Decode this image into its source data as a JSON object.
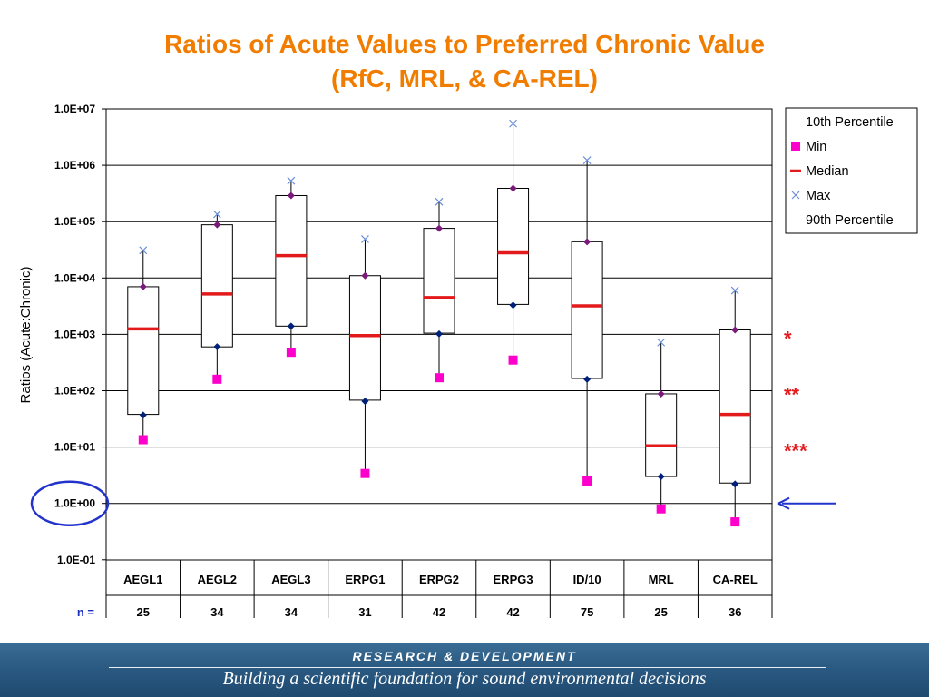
{
  "title_line1": "Ratios of Acute Values to Preferred Chronic Value",
  "title_line2": "(RfC, MRL, & CA-REL)",
  "n_label": "n =",
  "footer": {
    "line1": "RESEARCH &  DEVELOPMENT",
    "line2": "Building a scientific foundation for sound environmental decisions"
  },
  "colors": {
    "title": "#f07d00",
    "p10": "#00207a",
    "min": "#ff00cc",
    "median": "#e31a1c",
    "max": "#6a8fd8",
    "p90": "#7a1a7a",
    "stars": "#e31a1c",
    "callout": "#2233cc"
  },
  "chart_data": {
    "type": "box",
    "ylabel": "Ratios (Acute:Chronic)",
    "yscale": "log",
    "ylim": [
      0.1,
      10000000
    ],
    "ytick_labels": [
      "1.0E+07",
      "1.0E+06",
      "1.0E+05",
      "1.0E+04",
      "1.0E+03",
      "1.0E+02",
      "1.0E+01",
      "1.0E+00",
      "1.0E-01"
    ],
    "ytick_values": [
      10000000,
      1000000,
      100000,
      10000,
      1000,
      100,
      10,
      1,
      0.1
    ],
    "categories": [
      "AEGL1",
      "AEGL2",
      "AEGL3",
      "ERPG1",
      "ERPG2",
      "ERPG3",
      "ID/10",
      "MRL",
      "CA-REL"
    ],
    "n": [
      "25",
      "34",
      "34",
      "31",
      "42",
      "42",
      "75",
      "25",
      "36"
    ],
    "legend": [
      "10th Percentile",
      "Min",
      "Median",
      "Max",
      "90th Percentile"
    ],
    "legend_position": "top-right",
    "grid": true,
    "series": [
      {
        "name": "10th Percentile",
        "values": [
          37,
          600,
          1400,
          65,
          1020,
          3300,
          160,
          3,
          2.2
        ]
      },
      {
        "name": "Min",
        "values": [
          13.5,
          160,
          480,
          3.4,
          170,
          350,
          2.5,
          0.8,
          0.47
        ]
      },
      {
        "name": "Median",
        "values": [
          1250,
          5200,
          25000,
          950,
          4500,
          28000,
          3200,
          10.5,
          38
        ]
      },
      {
        "name": "Max",
        "values": [
          31000,
          135000,
          530000,
          49000,
          225000,
          5500000,
          1230000,
          720,
          6000
        ]
      },
      {
        "name": "90th Percentile",
        "values": [
          7000,
          88000,
          290000,
          11000,
          76000,
          390000,
          44000,
          88,
          1200
        ]
      }
    ],
    "box_q1": [
      38,
      600,
      1400,
      68,
      1050,
      3400,
      165,
      3,
      2.3
    ],
    "box_q3": [
      7000,
      88000,
      290000,
      11000,
      76000,
      390000,
      44000,
      88,
      1200
    ],
    "annotations": [
      {
        "text": "*",
        "at": 1000
      },
      {
        "text": "**",
        "at": 100
      },
      {
        "text": "***",
        "at": 10
      }
    ],
    "reference_line_value": 1
  }
}
